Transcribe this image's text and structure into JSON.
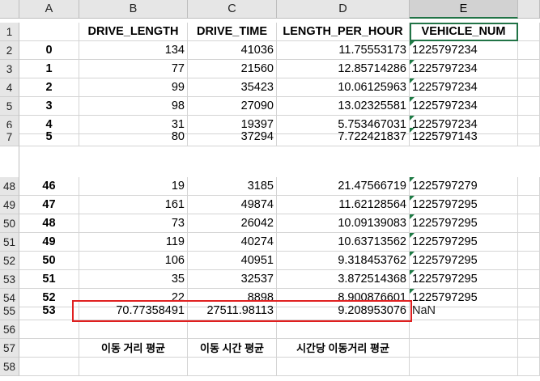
{
  "columns": {
    "a": "A",
    "b": "B",
    "c": "C",
    "d": "D",
    "e": "E"
  },
  "rows": [
    {
      "n": "1",
      "a": "",
      "b": "DRIVE_LENGTH",
      "c": "DRIVE_TIME",
      "d": "LENGTH_PER_HOUR",
      "e": "VEHICLE_NUM",
      "header": true
    },
    {
      "n": "2",
      "a": "0",
      "b": "134",
      "c": "41036",
      "d": "11.75553173",
      "e": "1225797234"
    },
    {
      "n": "3",
      "a": "1",
      "b": "77",
      "c": "21560",
      "d": "12.85714286",
      "e": "1225797234"
    },
    {
      "n": "4",
      "a": "2",
      "b": "99",
      "c": "35423",
      "d": "10.06125963",
      "e": "1225797234"
    },
    {
      "n": "5",
      "a": "3",
      "b": "98",
      "c": "27090",
      "d": "13.02325581",
      "e": "1225797234"
    },
    {
      "n": "6",
      "a": "4",
      "b": "31",
      "c": "19397",
      "d": "5.753467031",
      "e": "1225797234"
    },
    {
      "n": "7",
      "a": "5",
      "b": "80",
      "c": "37294",
      "d": "7.722421837",
      "e": "1225797143"
    },
    {
      "n": "48",
      "a": "46",
      "b": "19",
      "c": "3185",
      "d": "21.47566719",
      "e": "1225797279"
    },
    {
      "n": "49",
      "a": "47",
      "b": "161",
      "c": "49874",
      "d": "11.62128564",
      "e": "1225797295"
    },
    {
      "n": "50",
      "a": "48",
      "b": "73",
      "c": "26042",
      "d": "10.09139083",
      "e": "1225797295"
    },
    {
      "n": "51",
      "a": "49",
      "b": "119",
      "c": "40274",
      "d": "10.63713562",
      "e": "1225797295"
    },
    {
      "n": "52",
      "a": "50",
      "b": "106",
      "c": "40951",
      "d": "9.318453762",
      "e": "1225797295"
    },
    {
      "n": "53",
      "a": "51",
      "b": "35",
      "c": "32537",
      "d": "3.872514368",
      "e": "1225797295"
    },
    {
      "n": "54",
      "a": "52",
      "b": "22",
      "c": "8898",
      "d": "8.900876601",
      "e": "1225797295"
    },
    {
      "n": "55",
      "a": "53",
      "b": "70.77358491",
      "c": "27511.98113",
      "d": "9.208953076",
      "e": "NaN"
    },
    {
      "n": "56",
      "a": "",
      "b": "",
      "c": "",
      "d": "",
      "e": ""
    },
    {
      "n": "57",
      "a": "",
      "b": "이동 거리 평균",
      "c": "이동 시간 평균",
      "d": "시간당 이동거리 평균",
      "e": ""
    },
    {
      "n": "58",
      "a": "",
      "b": "",
      "c": "",
      "d": "",
      "e": ""
    }
  ]
}
